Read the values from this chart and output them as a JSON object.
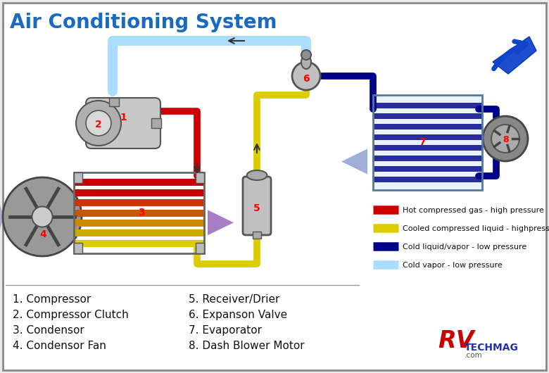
{
  "title": "Air Conditioning System",
  "title_color": "#1a6bbf",
  "title_fontsize": 20,
  "bg_color": "#ebebeb",
  "border_color": "#888888",
  "legend_items": [
    {
      "label": "Hot compressed gas - high pressure",
      "color": "#cc0000"
    },
    {
      "label": "Cooled compressed liquid - highpressure",
      "color": "#ddcc00"
    },
    {
      "label": "Cold liquid/vapor - low pressure",
      "color": "#000088"
    },
    {
      "label": "Cold vapor - low pressure",
      "color": "#aaddff"
    }
  ],
  "bottom_left": [
    "1. Compressor",
    "2. Compressor Clutch",
    "3. Condensor",
    "4. Condensor Fan"
  ],
  "bottom_right": [
    "5. Receiver/Drier",
    "6. Expanson Valve",
    "7. Evaporator",
    "8. Dash Blower Motor"
  ],
  "rv_color": "#cc0000",
  "techmag_color": "#2233aa",
  "pipe_lw": 7
}
